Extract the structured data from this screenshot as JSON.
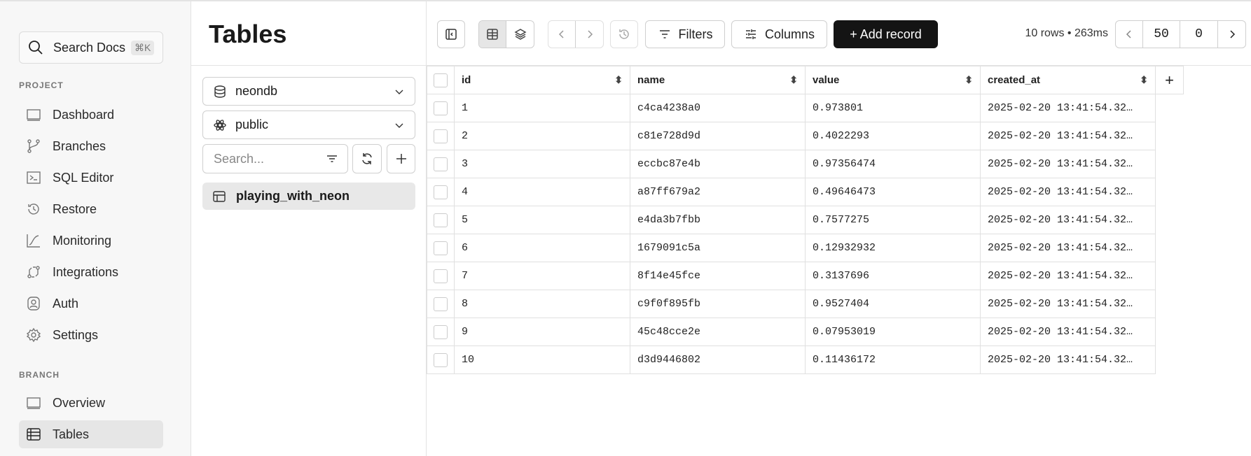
{
  "sidebar": {
    "search_label": "Search Docs",
    "search_shortcut": "⌘K",
    "project_label": "PROJECT",
    "project_items": [
      {
        "label": "Dashboard",
        "icon": "dashboard-icon"
      },
      {
        "label": "Branches",
        "icon": "branch-icon"
      },
      {
        "label": "SQL Editor",
        "icon": "terminal-icon"
      },
      {
        "label": "Restore",
        "icon": "history-icon"
      },
      {
        "label": "Monitoring",
        "icon": "chart-icon"
      },
      {
        "label": "Integrations",
        "icon": "integrations-icon"
      },
      {
        "label": "Auth",
        "icon": "auth-icon"
      },
      {
        "label": "Settings",
        "icon": "gear-icon"
      }
    ],
    "branch_label": "BRANCH",
    "branch_items": [
      {
        "label": "Overview",
        "icon": "overview-icon"
      },
      {
        "label": "Tables",
        "icon": "table-icon",
        "active": true
      }
    ]
  },
  "panel": {
    "title": "Tables",
    "database": "neondb",
    "schema": "public",
    "search_placeholder": "Search...",
    "tables": [
      "playing_with_neon"
    ]
  },
  "toolbar": {
    "filters_label": "Filters",
    "columns_label": "Columns",
    "add_record_label": "+ Add record",
    "status": "10 rows • 263ms",
    "limit": "50",
    "offset": "0"
  },
  "grid": {
    "columns": [
      "id",
      "name",
      "value",
      "created_at"
    ],
    "rows": [
      [
        "1",
        "c4ca4238a0",
        "0.973801",
        "2025-02-20 13:41:54.32…"
      ],
      [
        "2",
        "c81e728d9d",
        "0.4022293",
        "2025-02-20 13:41:54.32…"
      ],
      [
        "3",
        "eccbc87e4b",
        "0.97356474",
        "2025-02-20 13:41:54.32…"
      ],
      [
        "4",
        "a87ff679a2",
        "0.49646473",
        "2025-02-20 13:41:54.32…"
      ],
      [
        "5",
        "e4da3b7fbb",
        "0.7577275",
        "2025-02-20 13:41:54.32…"
      ],
      [
        "6",
        "1679091c5a",
        "0.12932932",
        "2025-02-20 13:41:54.32…"
      ],
      [
        "7",
        "8f14e45fce",
        "0.3137696",
        "2025-02-20 13:41:54.32…"
      ],
      [
        "8",
        "c9f0f895fb",
        "0.9527404",
        "2025-02-20 13:41:54.32…"
      ],
      [
        "9",
        "45c48cce2e",
        "0.07953019",
        "2025-02-20 13:41:54.32…"
      ],
      [
        "10",
        "d3d9446802",
        "0.11436172",
        "2025-02-20 13:41:54.32…"
      ]
    ]
  }
}
